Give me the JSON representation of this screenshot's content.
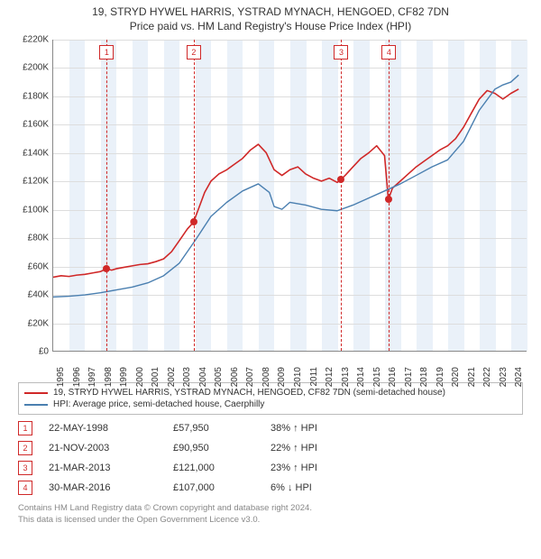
{
  "title_line1": "19, STRYD HYWEL HARRIS, YSTRAD MYNACH, HENGOED, CF82 7DN",
  "title_line2": "Price paid vs. HM Land Registry's House Price Index (HPI)",
  "chart": {
    "type": "line",
    "x_year_min": 1995,
    "x_year_max": 2025,
    "x_tick_years": [
      1995,
      1996,
      1997,
      1998,
      1999,
      2000,
      2001,
      2002,
      2003,
      2004,
      2005,
      2006,
      2007,
      2008,
      2009,
      2010,
      2011,
      2012,
      2013,
      2014,
      2015,
      2016,
      2017,
      2018,
      2019,
      2020,
      2021,
      2022,
      2023,
      2024
    ],
    "y_min": 0,
    "y_max": 220000,
    "y_tick_step": 20000,
    "y_tick_labels": [
      "£0",
      "£20K",
      "£40K",
      "£60K",
      "£80K",
      "£100K",
      "£120K",
      "£140K",
      "£160K",
      "£180K",
      "£200K",
      "£220K"
    ],
    "grid_color": "#dddddd",
    "axis_color": "#888888",
    "background_color": "#ffffff",
    "alt_band_color": "#eaf1f9",
    "series": [
      {
        "name": "property",
        "color": "#d02828",
        "width": 1.6,
        "legend": "19, STRYD HYWEL HARRIS, YSTRAD MYNACH, HENGOED, CF82 7DN (semi-detached house)",
        "points": [
          [
            1995.0,
            52000
          ],
          [
            1995.5,
            53000
          ],
          [
            1996.0,
            52500
          ],
          [
            1996.5,
            53500
          ],
          [
            1997.0,
            54000
          ],
          [
            1997.5,
            55000
          ],
          [
            1998.0,
            56000
          ],
          [
            1998.39,
            57950
          ],
          [
            1998.7,
            57000
          ],
          [
            1999.0,
            58000
          ],
          [
            1999.5,
            59000
          ],
          [
            2000.0,
            60000
          ],
          [
            2000.5,
            61000
          ],
          [
            2001.0,
            61500
          ],
          [
            2001.5,
            63000
          ],
          [
            2002.0,
            65000
          ],
          [
            2002.5,
            70000
          ],
          [
            2003.0,
            78000
          ],
          [
            2003.5,
            86000
          ],
          [
            2003.89,
            90950
          ],
          [
            2004.2,
            100000
          ],
          [
            2004.6,
            112000
          ],
          [
            2005.0,
            120000
          ],
          [
            2005.5,
            125000
          ],
          [
            2006.0,
            128000
          ],
          [
            2006.5,
            132000
          ],
          [
            2007.0,
            136000
          ],
          [
            2007.5,
            142000
          ],
          [
            2008.0,
            146000
          ],
          [
            2008.5,
            140000
          ],
          [
            2009.0,
            128000
          ],
          [
            2009.5,
            124000
          ],
          [
            2010.0,
            128000
          ],
          [
            2010.5,
            130000
          ],
          [
            2011.0,
            125000
          ],
          [
            2011.5,
            122000
          ],
          [
            2012.0,
            120000
          ],
          [
            2012.5,
            122000
          ],
          [
            2013.0,
            119000
          ],
          [
            2013.22,
            121000
          ],
          [
            2013.5,
            124000
          ],
          [
            2014.0,
            130000
          ],
          [
            2014.5,
            136000
          ],
          [
            2015.0,
            140000
          ],
          [
            2015.5,
            145000
          ],
          [
            2016.0,
            138000
          ],
          [
            2016.24,
            107000
          ],
          [
            2016.5,
            115000
          ],
          [
            2017.0,
            120000
          ],
          [
            2017.5,
            125000
          ],
          [
            2018.0,
            130000
          ],
          [
            2018.5,
            134000
          ],
          [
            2019.0,
            138000
          ],
          [
            2019.5,
            142000
          ],
          [
            2020.0,
            145000
          ],
          [
            2020.5,
            150000
          ],
          [
            2021.0,
            158000
          ],
          [
            2021.5,
            168000
          ],
          [
            2022.0,
            178000
          ],
          [
            2022.5,
            184000
          ],
          [
            2023.0,
            182000
          ],
          [
            2023.5,
            178000
          ],
          [
            2024.0,
            182000
          ],
          [
            2024.5,
            185000
          ]
        ]
      },
      {
        "name": "hpi",
        "color": "#4a7fb0",
        "width": 1.4,
        "legend": "HPI: Average price, semi-detached house, Caerphilly",
        "points": [
          [
            1995.0,
            38000
          ],
          [
            1996.0,
            38500
          ],
          [
            1997.0,
            39500
          ],
          [
            1998.0,
            41000
          ],
          [
            1999.0,
            43000
          ],
          [
            2000.0,
            45000
          ],
          [
            2001.0,
            48000
          ],
          [
            2002.0,
            53000
          ],
          [
            2003.0,
            62000
          ],
          [
            2004.0,
            78000
          ],
          [
            2005.0,
            95000
          ],
          [
            2006.0,
            105000
          ],
          [
            2007.0,
            113000
          ],
          [
            2008.0,
            118000
          ],
          [
            2008.7,
            112000
          ],
          [
            2009.0,
            102000
          ],
          [
            2009.5,
            100000
          ],
          [
            2010.0,
            105000
          ],
          [
            2011.0,
            103000
          ],
          [
            2012.0,
            100000
          ],
          [
            2013.0,
            99000
          ],
          [
            2014.0,
            103000
          ],
          [
            2015.0,
            108000
          ],
          [
            2016.0,
            113000
          ],
          [
            2017.0,
            118000
          ],
          [
            2018.0,
            124000
          ],
          [
            2019.0,
            130000
          ],
          [
            2020.0,
            135000
          ],
          [
            2021.0,
            148000
          ],
          [
            2022.0,
            170000
          ],
          [
            2023.0,
            185000
          ],
          [
            2023.5,
            188000
          ],
          [
            2024.0,
            190000
          ],
          [
            2024.5,
            195000
          ]
        ]
      }
    ],
    "markers": [
      {
        "idx": "1",
        "year": 1998.39
      },
      {
        "idx": "2",
        "year": 2003.89
      },
      {
        "idx": "3",
        "year": 2013.22
      },
      {
        "idx": "4",
        "year": 2016.24
      }
    ],
    "sale_points": [
      {
        "year": 1998.39,
        "value": 57950
      },
      {
        "year": 2003.89,
        "value": 90950
      },
      {
        "year": 2013.22,
        "value": 121000
      },
      {
        "year": 2016.24,
        "value": 107000
      }
    ]
  },
  "sales": [
    {
      "idx": "1",
      "date": "22-MAY-1998",
      "price": "£57,950",
      "pct": "38% ↑ HPI"
    },
    {
      "idx": "2",
      "date": "21-NOV-2003",
      "price": "£90,950",
      "pct": "22% ↑ HPI"
    },
    {
      "idx": "3",
      "date": "21-MAR-2013",
      "price": "£121,000",
      "pct": "23% ↑ HPI"
    },
    {
      "idx": "4",
      "date": "30-MAR-2016",
      "price": "£107,000",
      "pct": "6% ↓ HPI"
    }
  ],
  "footer_line1": "Contains HM Land Registry data © Crown copyright and database right 2024.",
  "footer_line2": "This data is licensed under the Open Government Licence v3.0."
}
